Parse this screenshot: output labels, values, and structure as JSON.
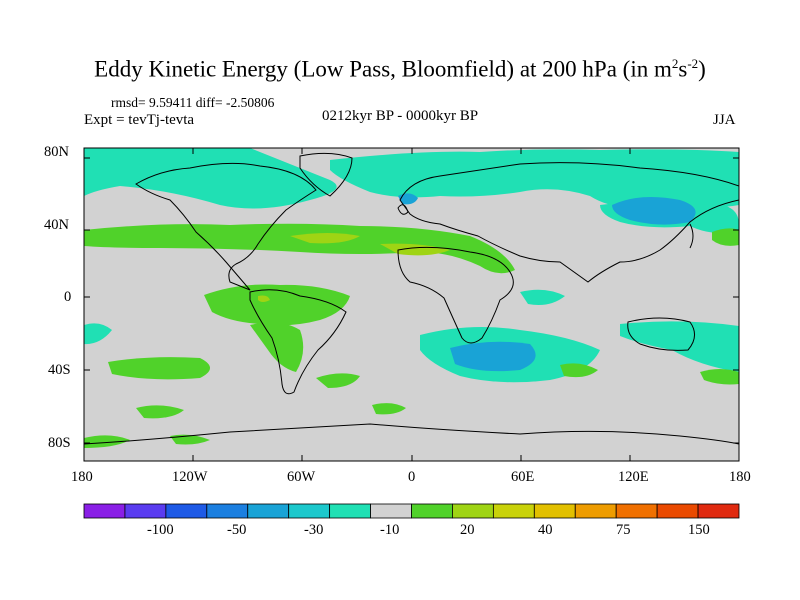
{
  "title": {
    "main": "Eddy Kinetic Energy (Low Pass, Bloomfield) at 200 hPa (in m",
    "sup1": "2",
    "mid": "s",
    "sup2": "-2",
    "end": ")"
  },
  "stats": "rmsd= 9.59411 diff= -2.50806",
  "experiment": "Expt = tevTj-tevta",
  "period": "0212kyr BP - 0000kyr BP",
  "season": "JJA",
  "lat_ticks": [
    "80N",
    "40N",
    "0",
    "40S",
    "80S"
  ],
  "lon_ticks": [
    "180",
    "120W",
    "60W",
    "0",
    "60E",
    "120E",
    "180"
  ],
  "colorbar": {
    "labels": [
      "-100",
      "-50",
      "-30",
      "-10",
      "20",
      "40",
      "75",
      "150"
    ],
    "colors": [
      "#8a1fe6",
      "#5a3cf0",
      "#1e5ae6",
      "#1b7fe0",
      "#19a3d6",
      "#1cc8cc",
      "#20e0b4",
      "#d2d2d2",
      "#50d22a",
      "#9fd414",
      "#c9d20a",
      "#e2c000",
      "#ee9c00",
      "#f07000",
      "#ea4a00",
      "#e02a10"
    ]
  },
  "map_colors": {
    "background": "#d2d2d2",
    "cyan": "#20e0b4",
    "blue": "#19a3d6",
    "green": "#50d22a",
    "yellow_green": "#9fd414"
  }
}
